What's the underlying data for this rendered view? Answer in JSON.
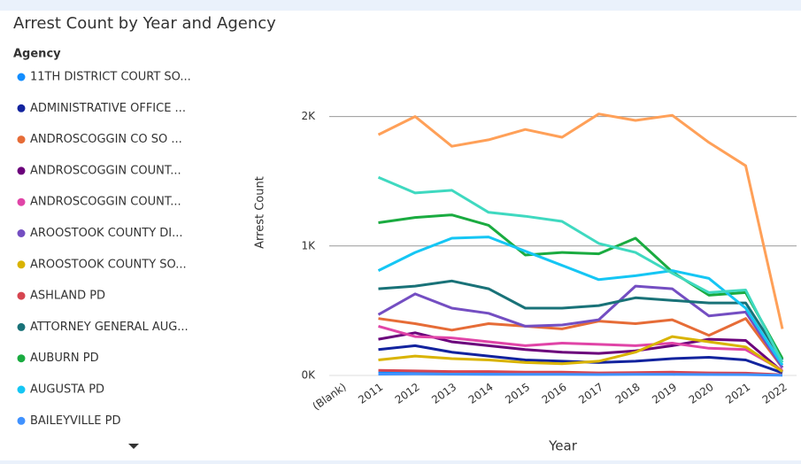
{
  "chart_data": {
    "type": "line",
    "title": "Arrest Count by Year and Agency",
    "legend_title": "Agency",
    "x_label": "Year",
    "y_label": "Arrest Count",
    "categories": [
      "(Blank)",
      "2011",
      "2012",
      "2013",
      "2014",
      "2015",
      "2016",
      "2017",
      "2018",
      "2019",
      "2020",
      "2021",
      "2022"
    ],
    "ylim": [
      0,
      2100
    ],
    "yticks": [
      {
        "value": 0,
        "label": "0K"
      },
      {
        "value": 1000,
        "label": "1K"
      },
      {
        "value": 2000,
        "label": "2K"
      }
    ],
    "grid": true,
    "legend": "left",
    "series": [
      {
        "name": "11TH DISTRICT COURT SO...",
        "color": "#118DFF",
        "values": [
          null,
          20,
          25,
          20,
          18,
          15,
          15,
          12,
          14,
          15,
          12,
          10,
          3
        ]
      },
      {
        "name": "ADMINISTRATIVE OFFICE ...",
        "color": "#12239E",
        "values": [
          null,
          200,
          230,
          180,
          150,
          120,
          110,
          100,
          110,
          130,
          140,
          120,
          20
        ]
      },
      {
        "name": "ANDROSCOGGIN CO SO ...",
        "color": "#E66C37",
        "values": [
          null,
          440,
          400,
          350,
          400,
          380,
          360,
          420,
          400,
          430,
          310,
          440,
          60
        ]
      },
      {
        "name": "ANDROSCOGGIN COUNT...",
        "color": "#6B007B",
        "values": [
          null,
          280,
          330,
          260,
          230,
          200,
          180,
          170,
          190,
          230,
          280,
          270,
          30
        ]
      },
      {
        "name": "ANDROSCOGGIN COUNT...",
        "color": "#E044A7",
        "values": [
          null,
          380,
          300,
          290,
          260,
          230,
          250,
          240,
          230,
          250,
          210,
          200,
          40
        ]
      },
      {
        "name": "AROOSTOOK COUNTY DI...",
        "color": "#744EC2",
        "values": [
          null,
          470,
          630,
          520,
          480,
          380,
          390,
          430,
          690,
          670,
          460,
          490,
          60
        ]
      },
      {
        "name": "AROOSTOOK COUNTY SO...",
        "color": "#D9B300",
        "values": [
          null,
          120,
          150,
          130,
          120,
          100,
          90,
          110,
          180,
          300,
          260,
          220,
          30
        ]
      },
      {
        "name": "ASHLAND PD",
        "color": "#D64550",
        "values": [
          null,
          40,
          35,
          30,
          30,
          25,
          25,
          20,
          22,
          25,
          20,
          18,
          5
        ]
      },
      {
        "name": "ATTORNEY GENERAL AUG...",
        "color": "#197278",
        "values": [
          null,
          670,
          690,
          730,
          670,
          520,
          520,
          540,
          600,
          580,
          560,
          560,
          120
        ]
      },
      {
        "name": "AUBURN PD",
        "color": "#1AAB40",
        "values": [
          null,
          1180,
          1220,
          1240,
          1160,
          930,
          950,
          940,
          1060,
          800,
          620,
          640,
          130
        ]
      },
      {
        "name": "AUGUSTA PD",
        "color": "#15C6F4",
        "values": [
          null,
          810,
          950,
          1060,
          1070,
          960,
          850,
          740,
          770,
          810,
          750,
          520,
          80
        ]
      },
      {
        "name": "BAILEYVILLE PD",
        "color": "#4092FF",
        "values": [
          null,
          10,
          12,
          10,
          9,
          8,
          8,
          7,
          8,
          8,
          7,
          6,
          2
        ]
      },
      {
        "color": "#FFA058",
        "values": [
          null,
          1860,
          2000,
          1770,
          1820,
          1900,
          1840,
          2020,
          1970,
          2010,
          1800,
          1620,
          360
        ]
      },
      {
        "color": "#3FD9C0",
        "values": [
          null,
          1530,
          1410,
          1430,
          1260,
          1230,
          1190,
          1020,
          950,
          790,
          640,
          660,
          100
        ]
      }
    ]
  }
}
